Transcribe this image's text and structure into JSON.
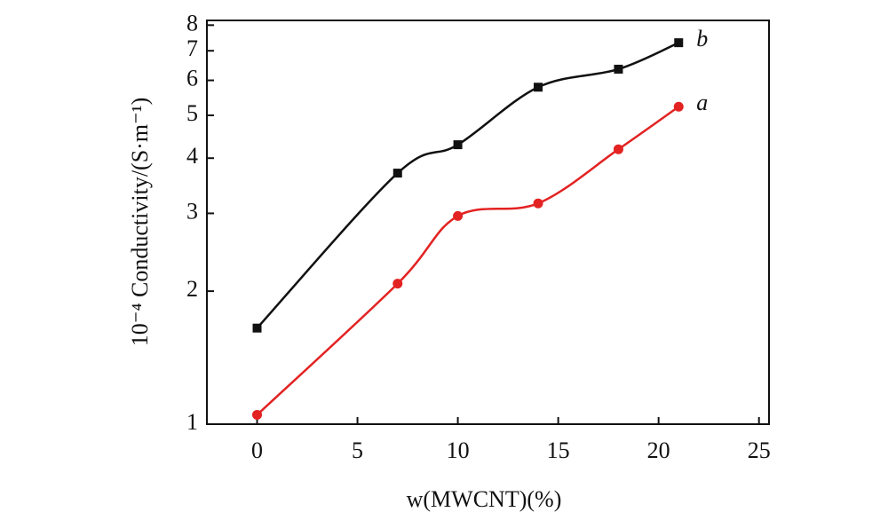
{
  "chart_data": {
    "type": "line",
    "xlabel": "w(MWCNT)(%)",
    "ylabel": "10⁻⁴ Conductivity/(S·m⁻¹)",
    "x": [
      0,
      7,
      10,
      14,
      18,
      21
    ],
    "series": [
      {
        "name": "a",
        "color": "#e32222",
        "marker": "circle",
        "values": [
          1.05,
          2.08,
          2.96,
          3.16,
          4.19,
          5.23
        ]
      },
      {
        "name": "b",
        "color": "#111111",
        "marker": "square",
        "values": [
          1.65,
          3.7,
          4.29,
          5.79,
          6.36,
          7.3
        ]
      }
    ],
    "xlim": [
      -2.5,
      25.5
    ],
    "xticks": [
      0,
      5,
      10,
      15,
      20,
      25
    ],
    "ylim": [
      1,
      8.2
    ],
    "yticks": [
      1,
      2,
      3,
      4,
      5,
      6,
      7,
      8
    ],
    "yscale": "log",
    "grid": false
  }
}
